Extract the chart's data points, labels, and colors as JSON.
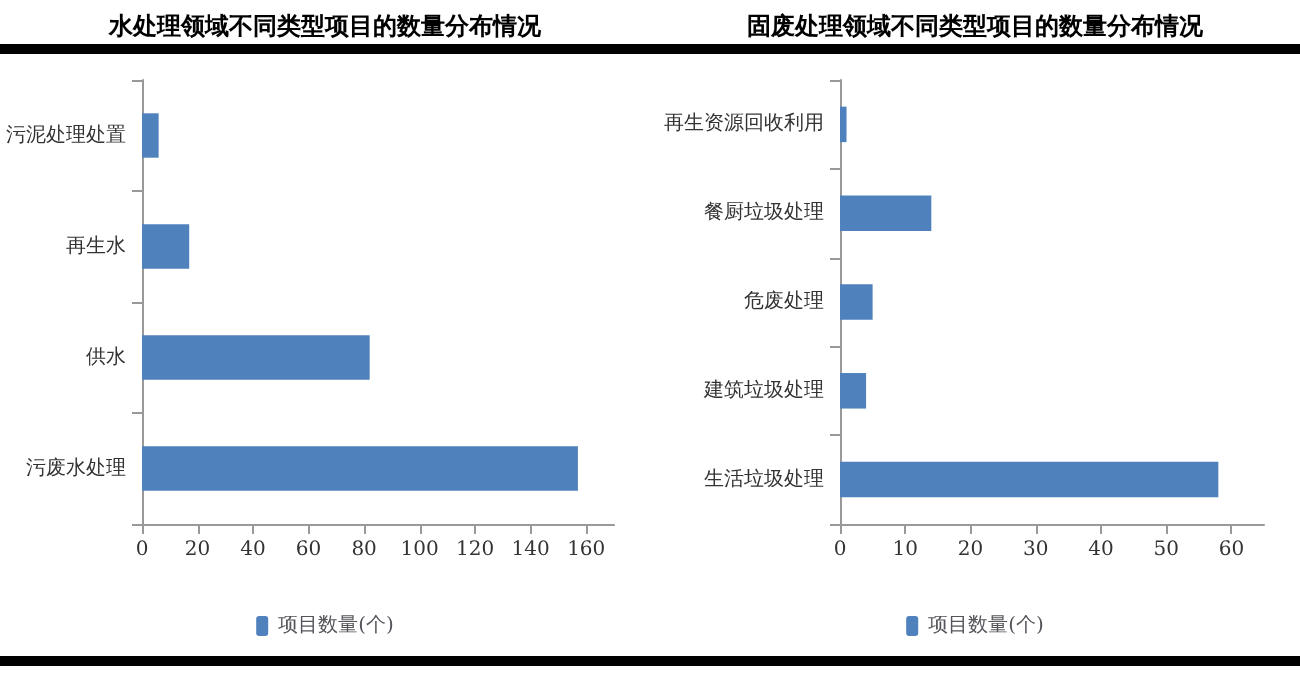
{
  "chart_data": [
    {
      "type": "bar",
      "orientation": "horizontal",
      "title": "水处理领域不同类型项目的数量分布情况",
      "categories": [
        "污泥处理处置",
        "再生水",
        "供水",
        "污废水处理"
      ],
      "series": [
        {
          "name": "项目数量(个)",
          "color": "#4f81bd",
          "values": [
            6,
            17,
            82,
            157
          ]
        }
      ],
      "xlim": [
        0,
        170
      ],
      "xticks": [
        0,
        20,
        40,
        60,
        80,
        100,
        120,
        140,
        160
      ],
      "grid": false,
      "legend": "bottom"
    },
    {
      "type": "bar",
      "orientation": "horizontal",
      "title": "固废处理领域不同类型项目的数量分布情况",
      "categories": [
        "再生资源回收利用",
        "餐厨垃圾处理",
        "危废处理",
        "建筑垃圾处理",
        "生活垃圾处理"
      ],
      "series": [
        {
          "name": "项目数量(个)",
          "color": "#4f81bd",
          "values": [
            1,
            14,
            5,
            4,
            58
          ]
        }
      ],
      "xlim": [
        0,
        65
      ],
      "xticks": [
        0,
        10,
        20,
        30,
        40,
        50,
        60
      ],
      "grid": false,
      "legend": "bottom"
    }
  ]
}
